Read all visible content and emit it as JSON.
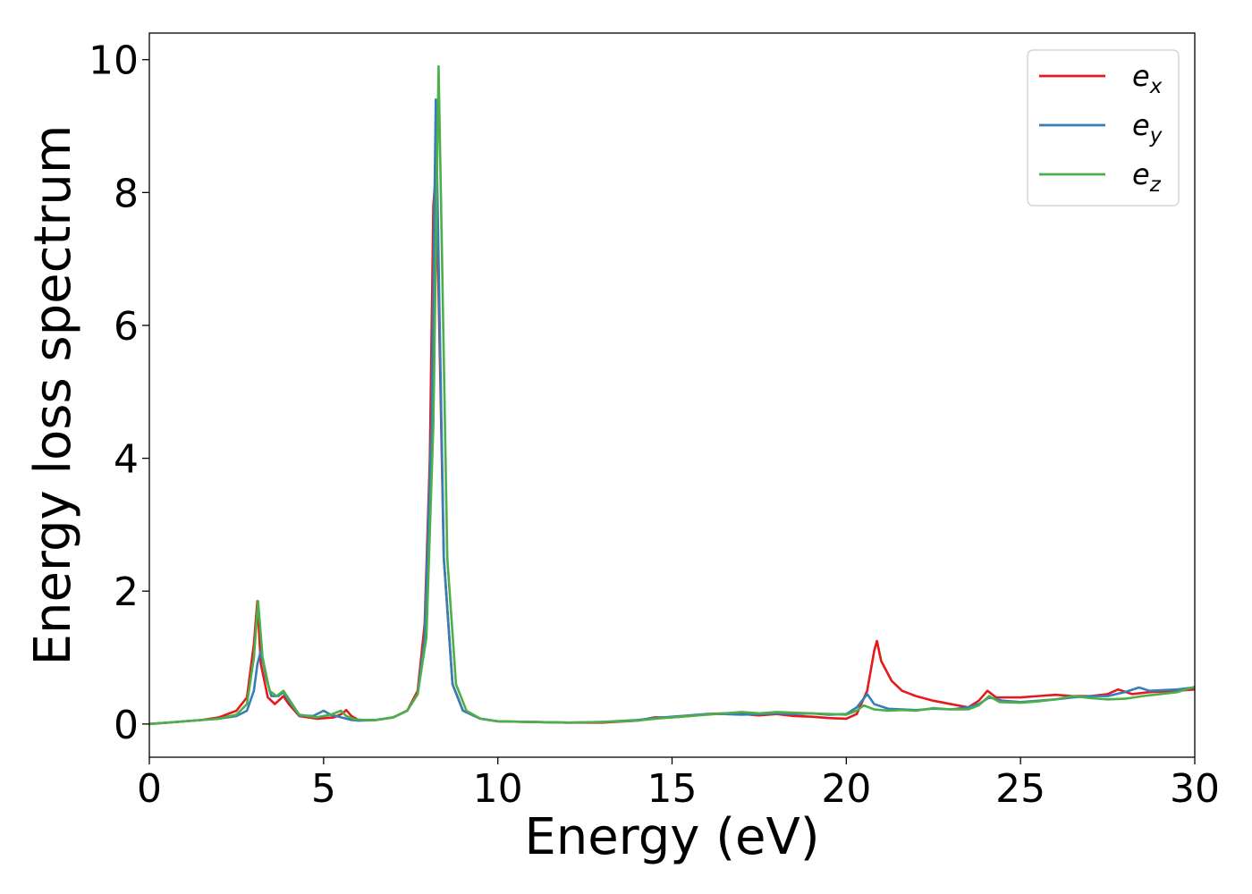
{
  "chart_data": {
    "type": "line",
    "xlabel": "Energy (eV)",
    "ylabel": "Energy loss spectrum",
    "xlim": [
      0,
      30
    ],
    "ylim": [
      -0.5,
      10.4
    ],
    "xticks": [
      "0",
      "5",
      "10",
      "15",
      "20",
      "25",
      "30"
    ],
    "xtick_values": [
      0,
      5,
      10,
      15,
      20,
      25,
      30
    ],
    "yticks": [
      "0",
      "2",
      "4",
      "6",
      "8",
      "10"
    ],
    "ytick_values": [
      0,
      2,
      4,
      6,
      8,
      10
    ],
    "grid": false,
    "legend_position": "top-right",
    "series": [
      {
        "name": "e_x",
        "legend_base": "e",
        "legend_sub": "x",
        "color": "#e41a1c",
        "points": [
          [
            0,
            0
          ],
          [
            0.5,
            0.02
          ],
          [
            1,
            0.04
          ],
          [
            1.5,
            0.06
          ],
          [
            2,
            0.1
          ],
          [
            2.5,
            0.2
          ],
          [
            2.8,
            0.4
          ],
          [
            3.0,
            1.2
          ],
          [
            3.1,
            1.85
          ],
          [
            3.2,
            0.9
          ],
          [
            3.4,
            0.4
          ],
          [
            3.6,
            0.3
          ],
          [
            3.85,
            0.42
          ],
          [
            4.0,
            0.3
          ],
          [
            4.3,
            0.12
          ],
          [
            4.8,
            0.08
          ],
          [
            5.3,
            0.1
          ],
          [
            5.55,
            0.16
          ],
          [
            5.65,
            0.21
          ],
          [
            5.8,
            0.12
          ],
          [
            6.0,
            0.06
          ],
          [
            6.5,
            0.06
          ],
          [
            7.0,
            0.1
          ],
          [
            7.4,
            0.2
          ],
          [
            7.7,
            0.5
          ],
          [
            7.9,
            1.5
          ],
          [
            8.05,
            4.0
          ],
          [
            8.15,
            7.8
          ],
          [
            8.22,
            8.3
          ],
          [
            8.3,
            6.5
          ],
          [
            8.45,
            2.5
          ],
          [
            8.7,
            0.6
          ],
          [
            9.0,
            0.2
          ],
          [
            9.5,
            0.08
          ],
          [
            10,
            0.04
          ],
          [
            11,
            0.03
          ],
          [
            12,
            0.02
          ],
          [
            13,
            0.02
          ],
          [
            14,
            0.05
          ],
          [
            14.5,
            0.1
          ],
          [
            15,
            0.1
          ],
          [
            15.5,
            0.12
          ],
          [
            16,
            0.15
          ],
          [
            16.5,
            0.16
          ],
          [
            17,
            0.15
          ],
          [
            17.5,
            0.13
          ],
          [
            18,
            0.15
          ],
          [
            18.5,
            0.12
          ],
          [
            19,
            0.11
          ],
          [
            19.5,
            0.09
          ],
          [
            20,
            0.08
          ],
          [
            20.3,
            0.15
          ],
          [
            20.6,
            0.5
          ],
          [
            20.8,
            1.1
          ],
          [
            20.88,
            1.25
          ],
          [
            21.0,
            0.95
          ],
          [
            21.3,
            0.65
          ],
          [
            21.6,
            0.5
          ],
          [
            22,
            0.42
          ],
          [
            22.5,
            0.35
          ],
          [
            23,
            0.3
          ],
          [
            23.5,
            0.25
          ],
          [
            23.8,
            0.35
          ],
          [
            24.05,
            0.5
          ],
          [
            24.3,
            0.4
          ],
          [
            25,
            0.4
          ],
          [
            25.5,
            0.42
          ],
          [
            26,
            0.44
          ],
          [
            26.5,
            0.42
          ],
          [
            27,
            0.42
          ],
          [
            27.5,
            0.45
          ],
          [
            27.8,
            0.52
          ],
          [
            28.2,
            0.45
          ],
          [
            28.7,
            0.48
          ],
          [
            29.5,
            0.5
          ],
          [
            30,
            0.52
          ]
        ]
      },
      {
        "name": "e_y",
        "legend_base": "e",
        "legend_sub": "y",
        "color": "#377eb8",
        "points": [
          [
            0,
            0
          ],
          [
            0.5,
            0.02
          ],
          [
            1,
            0.04
          ],
          [
            1.5,
            0.06
          ],
          [
            2,
            0.08
          ],
          [
            2.5,
            0.12
          ],
          [
            2.8,
            0.2
          ],
          [
            3.0,
            0.5
          ],
          [
            3.1,
            0.9
          ],
          [
            3.2,
            1.1
          ],
          [
            3.35,
            0.7
          ],
          [
            3.5,
            0.42
          ],
          [
            3.7,
            0.42
          ],
          [
            3.85,
            0.48
          ],
          [
            4.0,
            0.35
          ],
          [
            4.3,
            0.13
          ],
          [
            4.7,
            0.12
          ],
          [
            5.0,
            0.2
          ],
          [
            5.2,
            0.14
          ],
          [
            5.5,
            0.1
          ],
          [
            5.8,
            0.06
          ],
          [
            6.0,
            0.05
          ],
          [
            6.5,
            0.06
          ],
          [
            7.0,
            0.1
          ],
          [
            7.4,
            0.2
          ],
          [
            7.7,
            0.45
          ],
          [
            7.9,
            1.3
          ],
          [
            8.1,
            4.5
          ],
          [
            8.22,
            9.4
          ],
          [
            8.3,
            7.0
          ],
          [
            8.45,
            2.5
          ],
          [
            8.7,
            0.6
          ],
          [
            9.0,
            0.2
          ],
          [
            9.5,
            0.08
          ],
          [
            10,
            0.04
          ],
          [
            11,
            0.03
          ],
          [
            12,
            0.02
          ],
          [
            13,
            0.03
          ],
          [
            14,
            0.06
          ],
          [
            14.5,
            0.09
          ],
          [
            15,
            0.11
          ],
          [
            15.5,
            0.13
          ],
          [
            16,
            0.15
          ],
          [
            16.5,
            0.15
          ],
          [
            17,
            0.14
          ],
          [
            17.5,
            0.15
          ],
          [
            18,
            0.16
          ],
          [
            18.5,
            0.15
          ],
          [
            19,
            0.16
          ],
          [
            19.5,
            0.14
          ],
          [
            20,
            0.15
          ],
          [
            20.3,
            0.25
          ],
          [
            20.6,
            0.45
          ],
          [
            20.8,
            0.3
          ],
          [
            21.2,
            0.23
          ],
          [
            21.6,
            0.22
          ],
          [
            22,
            0.21
          ],
          [
            22.5,
            0.23
          ],
          [
            23,
            0.22
          ],
          [
            23.5,
            0.25
          ],
          [
            23.8,
            0.3
          ],
          [
            24.1,
            0.4
          ],
          [
            24.5,
            0.35
          ],
          [
            25,
            0.33
          ],
          [
            25.5,
            0.35
          ],
          [
            26,
            0.37
          ],
          [
            26.5,
            0.4
          ],
          [
            27,
            0.42
          ],
          [
            27.5,
            0.42
          ],
          [
            28,
            0.48
          ],
          [
            28.4,
            0.55
          ],
          [
            28.7,
            0.5
          ],
          [
            29.5,
            0.52
          ],
          [
            30,
            0.55
          ]
        ]
      },
      {
        "name": "e_z",
        "legend_base": "e",
        "legend_sub": "z",
        "color": "#4daf4a",
        "points": [
          [
            0,
            0
          ],
          [
            0.5,
            0.02
          ],
          [
            1,
            0.04
          ],
          [
            1.5,
            0.06
          ],
          [
            2,
            0.08
          ],
          [
            2.5,
            0.14
          ],
          [
            2.8,
            0.3
          ],
          [
            3.0,
            1.0
          ],
          [
            3.12,
            1.85
          ],
          [
            3.25,
            1.0
          ],
          [
            3.45,
            0.5
          ],
          [
            3.65,
            0.42
          ],
          [
            3.85,
            0.5
          ],
          [
            4.0,
            0.38
          ],
          [
            4.3,
            0.14
          ],
          [
            4.8,
            0.1
          ],
          [
            5.2,
            0.14
          ],
          [
            5.5,
            0.2
          ],
          [
            5.65,
            0.12
          ],
          [
            5.9,
            0.07
          ],
          [
            6.2,
            0.06
          ],
          [
            6.5,
            0.06
          ],
          [
            7.0,
            0.1
          ],
          [
            7.4,
            0.2
          ],
          [
            7.7,
            0.45
          ],
          [
            7.95,
            1.3
          ],
          [
            8.15,
            4.5
          ],
          [
            8.3,
            9.9
          ],
          [
            8.4,
            7.0
          ],
          [
            8.55,
            2.5
          ],
          [
            8.8,
            0.6
          ],
          [
            9.1,
            0.2
          ],
          [
            9.5,
            0.08
          ],
          [
            10,
            0.04
          ],
          [
            11,
            0.03
          ],
          [
            12,
            0.02
          ],
          [
            13,
            0.03
          ],
          [
            14,
            0.05
          ],
          [
            14.5,
            0.08
          ],
          [
            15,
            0.1
          ],
          [
            15.5,
            0.12
          ],
          [
            16,
            0.14
          ],
          [
            16.5,
            0.16
          ],
          [
            17,
            0.18
          ],
          [
            17.5,
            0.16
          ],
          [
            18,
            0.18
          ],
          [
            18.5,
            0.17
          ],
          [
            19,
            0.16
          ],
          [
            19.5,
            0.15
          ],
          [
            20,
            0.14
          ],
          [
            20.3,
            0.2
          ],
          [
            20.5,
            0.28
          ],
          [
            20.8,
            0.22
          ],
          [
            21.2,
            0.2
          ],
          [
            21.6,
            0.21
          ],
          [
            22,
            0.2
          ],
          [
            22.5,
            0.24
          ],
          [
            23,
            0.22
          ],
          [
            23.5,
            0.22
          ],
          [
            23.8,
            0.28
          ],
          [
            24.1,
            0.42
          ],
          [
            24.4,
            0.33
          ],
          [
            25,
            0.32
          ],
          [
            25.5,
            0.34
          ],
          [
            26,
            0.37
          ],
          [
            26.5,
            0.42
          ],
          [
            27,
            0.39
          ],
          [
            27.5,
            0.37
          ],
          [
            28,
            0.38
          ],
          [
            28.5,
            0.42
          ],
          [
            29,
            0.45
          ],
          [
            29.5,
            0.48
          ],
          [
            30,
            0.56
          ]
        ]
      }
    ]
  }
}
